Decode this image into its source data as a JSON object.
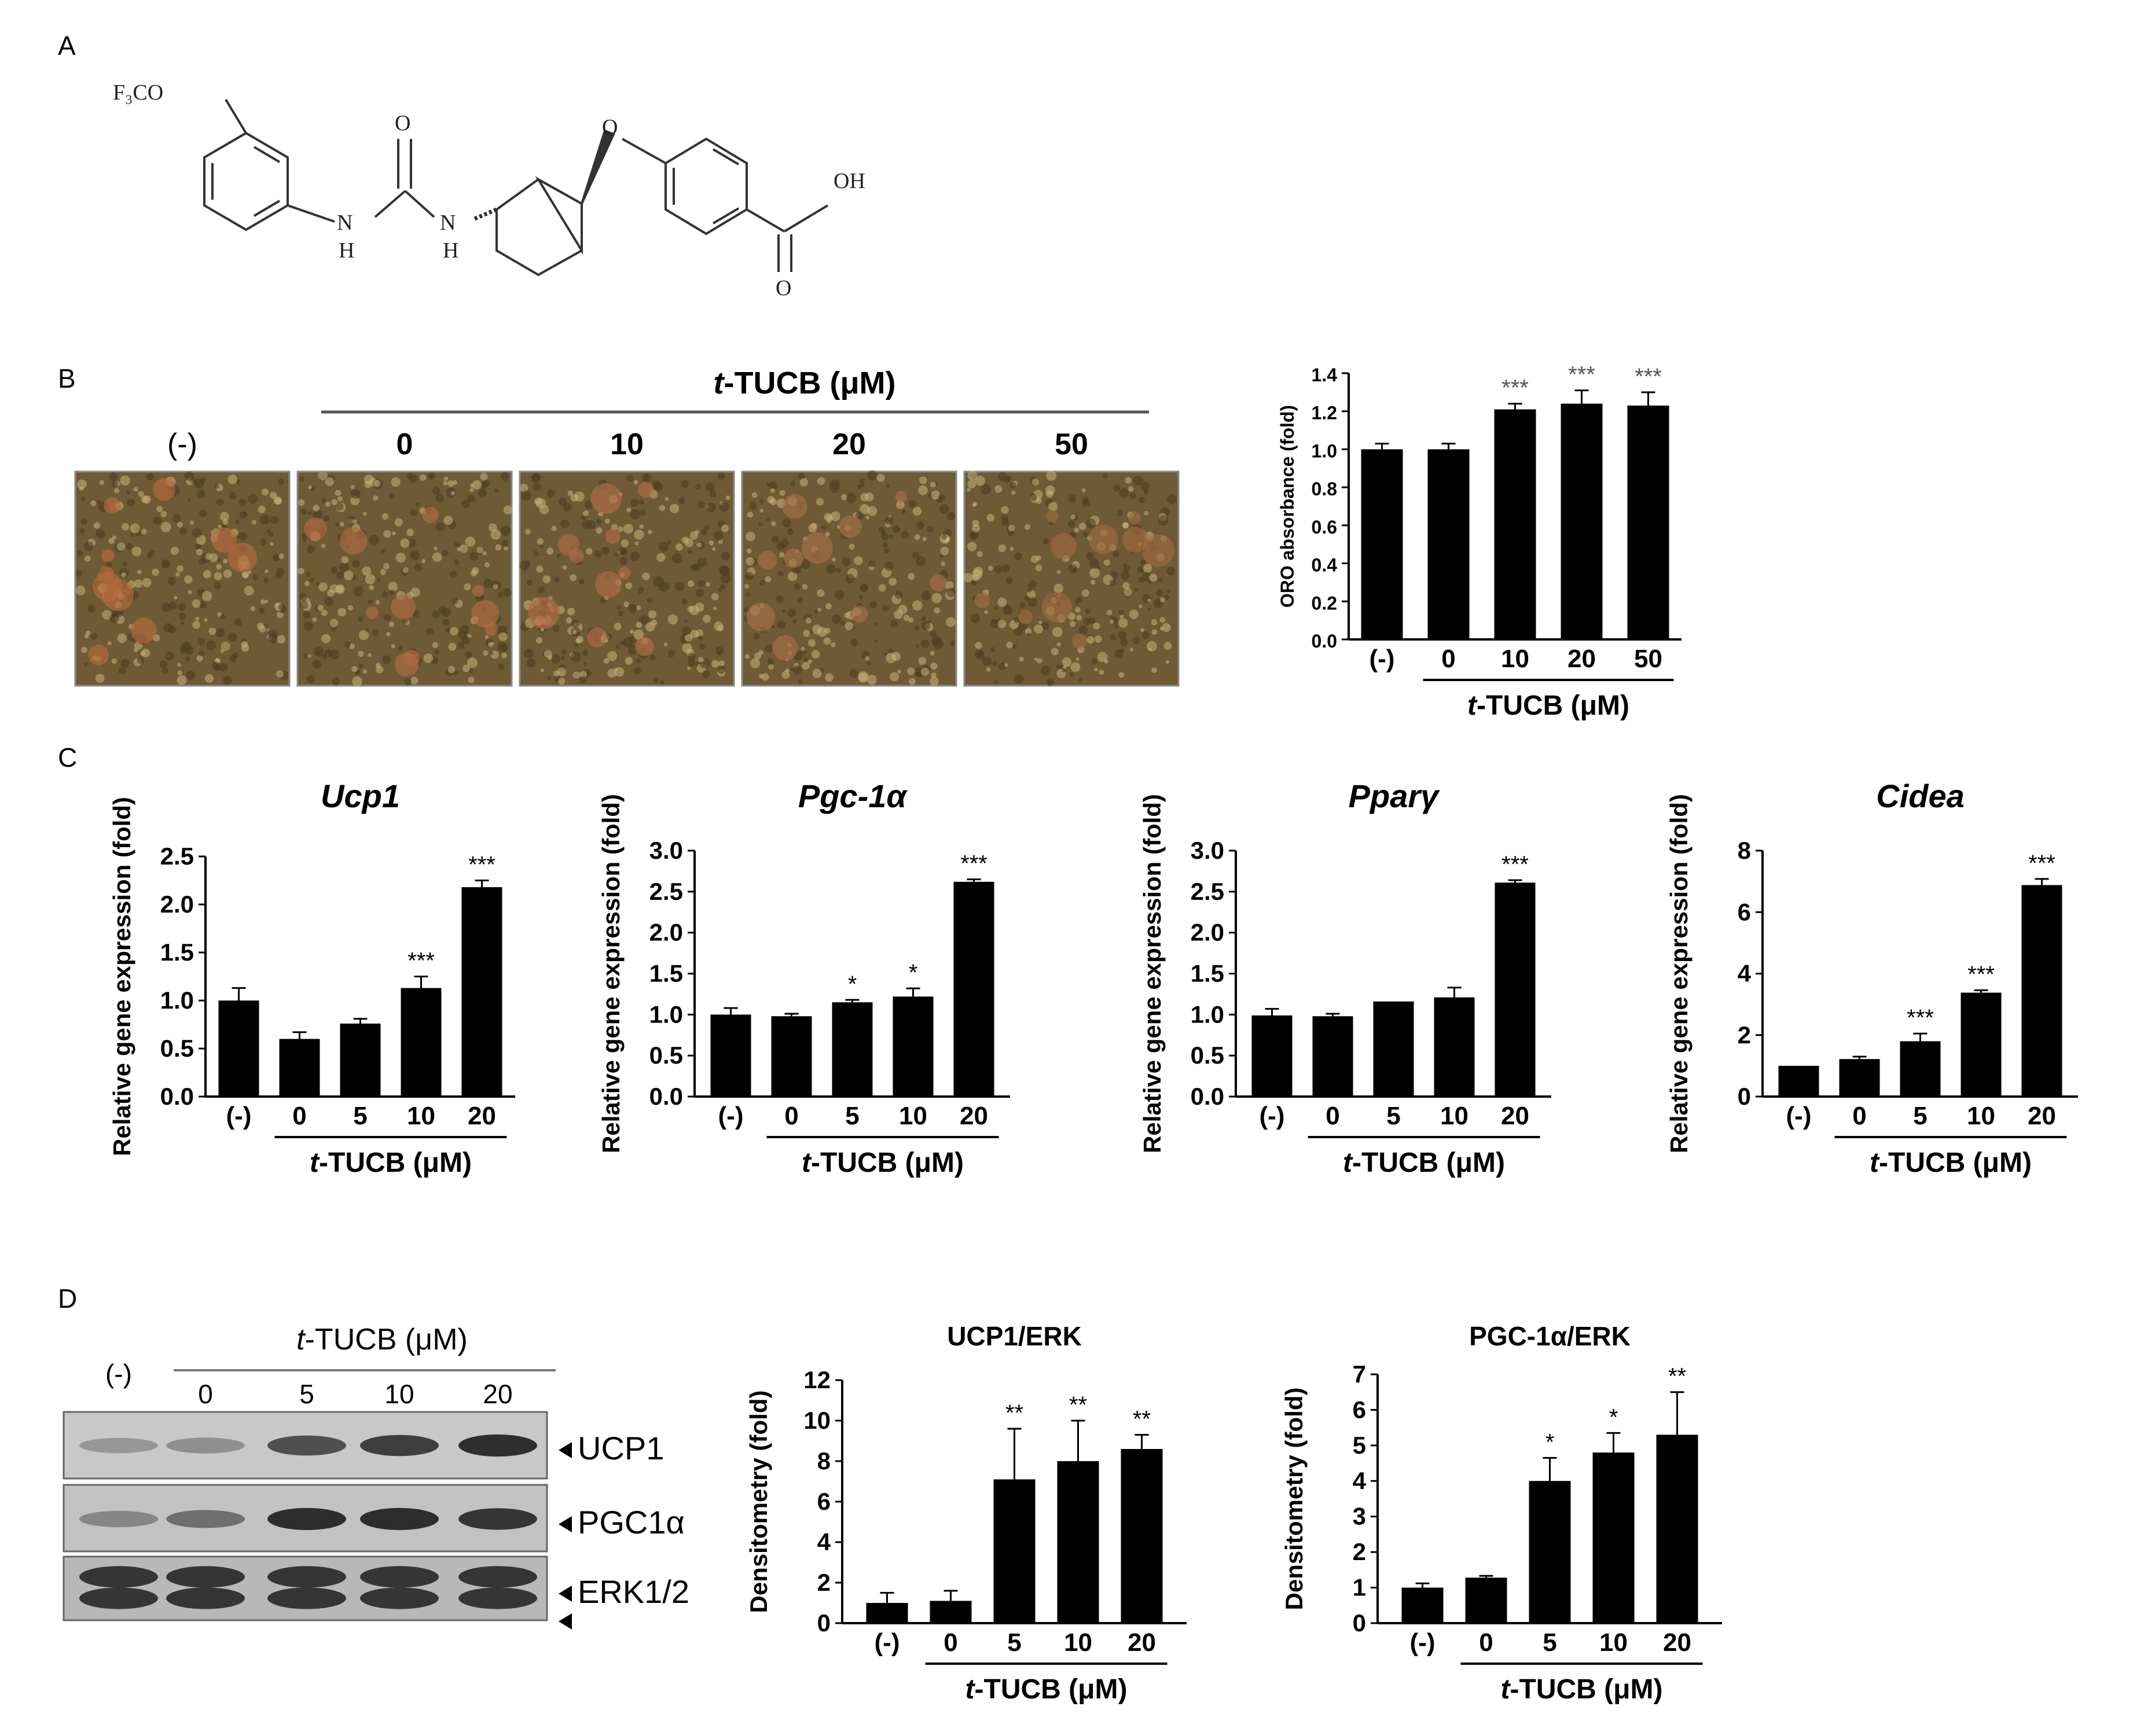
{
  "panels": {
    "a": "A",
    "b": "B",
    "c": "C",
    "d": "D"
  },
  "structure": {
    "f3co": "F₃CO",
    "o_carbonyl": "O",
    "n1": "N",
    "h1": "H",
    "n2": "N",
    "h2": "H",
    "o_ether": "O",
    "oh": "OH",
    "o_acid": "O"
  },
  "micro": {
    "header_prefix": "t",
    "header_suffix": "-TUCB (μM)",
    "labels": [
      "(-)",
      "0",
      "10",
      "20",
      "50"
    ],
    "tints": [
      "#b86a3e",
      "#b26a44",
      "#b26c48",
      "#a86e48",
      "#a06a42"
    ],
    "base_color": "#6e5a34"
  },
  "blot": {
    "header_prefix": "t",
    "header_suffix": "-TUCB (μM)",
    "lanes": [
      "(-)",
      "0",
      "5",
      "10",
      "20"
    ],
    "bands": [
      "UCP1",
      "PGC1α",
      "ERK1/2"
    ],
    "ucp1_intensity": [
      0.25,
      0.3,
      0.7,
      0.8,
      0.9
    ],
    "pgc1a_intensity": [
      0.35,
      0.5,
      0.9,
      0.9,
      0.85
    ],
    "erk_intensity": [
      0.85,
      0.85,
      0.85,
      0.85,
      0.85
    ]
  },
  "chart_data": [
    {
      "type": "bar",
      "title": "",
      "ylabel": "ORO absorbance (fold)",
      "xlabel_prefix": "t",
      "xlabel_suffix": "-TUCB (μM)",
      "categories": [
        "(-)",
        "0",
        "10",
        "20",
        "50"
      ],
      "values": [
        1.0,
        1.0,
        1.21,
        1.24,
        1.23
      ],
      "errors": [
        0.03,
        0.03,
        0.03,
        0.07,
        0.07
      ],
      "sig": [
        "",
        "",
        "***",
        "***",
        "***"
      ],
      "ylim": [
        0,
        1.4
      ],
      "yticks": [
        "0.0",
        "0.2",
        "0.4",
        "0.6",
        "0.8",
        "1.0",
        "1.2",
        "1.4"
      ]
    },
    {
      "type": "bar",
      "title": "Ucp1",
      "ylabel": "Relative gene expression (fold)",
      "xlabel_prefix": "t",
      "xlabel_suffix": "-TUCB (μM)",
      "categories": [
        "(-)",
        "0",
        "5",
        "10",
        "20"
      ],
      "values": [
        1.0,
        0.6,
        0.76,
        1.13,
        2.18
      ],
      "errors": [
        0.13,
        0.07,
        0.05,
        0.12,
        0.07
      ],
      "sig": [
        "",
        "",
        "",
        "***",
        "***"
      ],
      "ylim": [
        0,
        2.5
      ],
      "yticks": [
        "0.0",
        "0.5",
        "1.0",
        "1.5",
        "2.0",
        "2.5"
      ]
    },
    {
      "type": "bar",
      "title": "Pgc-1α",
      "ylabel": "Relative gene expression (fold)",
      "xlabel_prefix": "t",
      "xlabel_suffix": "-TUCB (μM)",
      "categories": [
        "(-)",
        "0",
        "5",
        "10",
        "20"
      ],
      "values": [
        1.0,
        0.98,
        1.15,
        1.22,
        2.62
      ],
      "errors": [
        0.08,
        0.03,
        0.03,
        0.1,
        0.03
      ],
      "sig": [
        "",
        "",
        "*",
        "*",
        "***"
      ],
      "ylim": [
        0,
        3.0
      ],
      "yticks": [
        "0.0",
        "0.5",
        "1.0",
        "1.5",
        "2.0",
        "2.5",
        "3.0"
      ]
    },
    {
      "type": "bar",
      "title": "Pparγ",
      "ylabel": "Relative gene expression (fold)",
      "xlabel_prefix": "t",
      "xlabel_suffix": "-TUCB (μM)",
      "categories": [
        "(-)",
        "0",
        "5",
        "10",
        "20"
      ],
      "values": [
        0.99,
        0.98,
        1.16,
        1.21,
        2.61
      ],
      "errors": [
        0.08,
        0.03,
        0.0,
        0.12,
        0.03
      ],
      "sig": [
        "",
        "",
        "",
        "",
        "***"
      ],
      "ylim": [
        0,
        3.0
      ],
      "yticks": [
        "0.0",
        "0.5",
        "1.0",
        "1.5",
        "2.0",
        "2.5",
        "3.0"
      ]
    },
    {
      "type": "bar",
      "title": "Cidea",
      "ylabel": "Relative gene expression (fold)",
      "xlabel_prefix": "t",
      "xlabel_suffix": "-TUCB (μM)",
      "categories": [
        "(-)",
        "0",
        "5",
        "10",
        "20"
      ],
      "values": [
        1.0,
        1.22,
        1.8,
        3.38,
        6.88
      ],
      "errors": [
        0.0,
        0.08,
        0.25,
        0.08,
        0.2
      ],
      "sig": [
        "",
        "",
        "***",
        "***",
        "***"
      ],
      "ylim": [
        0,
        8
      ],
      "yticks": [
        "0",
        "2",
        "4",
        "6",
        "8"
      ]
    },
    {
      "type": "bar",
      "title": "UCP1/ERK",
      "ylabel": "Densitometry (fold)",
      "xlabel_prefix": "t",
      "xlabel_suffix": "-TUCB (μM)",
      "categories": [
        "(-)",
        "0",
        "5",
        "10",
        "20"
      ],
      "values": [
        1.0,
        1.1,
        7.1,
        8.0,
        8.6
      ],
      "errors": [
        0.5,
        0.5,
        2.5,
        2.0,
        0.7
      ],
      "sig": [
        "",
        "",
        "**",
        "**",
        "**"
      ],
      "ylim": [
        0,
        12
      ],
      "yticks": [
        "0",
        "2",
        "4",
        "6",
        "8",
        "10",
        "12"
      ]
    },
    {
      "type": "bar",
      "title": "PGC-1α/ERK",
      "ylabel": "Densitometry (fold)",
      "xlabel_prefix": "t",
      "xlabel_suffix": "-TUCB (μM)",
      "categories": [
        "(-)",
        "0",
        "5",
        "10",
        "20"
      ],
      "values": [
        1.0,
        1.28,
        4.0,
        4.8,
        5.3
      ],
      "errors": [
        0.12,
        0.05,
        0.65,
        0.55,
        1.2
      ],
      "sig": [
        "",
        "",
        "*",
        "*",
        "**"
      ],
      "ylim": [
        0,
        7
      ],
      "yticks": [
        "0",
        "1",
        "2",
        "3",
        "4",
        "5",
        "6",
        "7"
      ]
    }
  ]
}
